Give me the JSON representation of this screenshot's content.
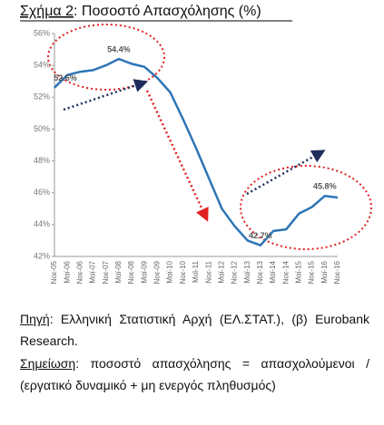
{
  "header": {
    "figure_label": "Σχήμα 2",
    "title": ": Ποσοστό Απασχόλησης (%)"
  },
  "chart_data": {
    "type": "line",
    "categories": [
      "Νοε-05",
      "Μαϊ-06",
      "Νοε-06",
      "Μαϊ-07",
      "Νοε-07",
      "Μαϊ-08",
      "Νοε-08",
      "Μαϊ-09",
      "Νοε-09",
      "Μαϊ-10",
      "Νοε-10",
      "Μαϊ-11",
      "Νοε-11",
      "Μαϊ-12",
      "Νοε-12",
      "Μαϊ-13",
      "Νοε-13",
      "Μαϊ-14",
      "Νοε-14",
      "Μαϊ-15",
      "Νοε-15",
      "Μαϊ-16",
      "Νοε-16"
    ],
    "series": [
      {
        "color": "#2e75b6",
        "values": [
          52.6,
          53.4,
          53.6,
          53.7,
          54.0,
          54.4,
          54.1,
          53.9,
          53.2,
          52.3,
          50.6,
          48.8,
          46.9,
          45.0,
          43.9,
          43.0,
          42.7,
          43.6,
          43.7,
          44.7,
          45.1,
          45.8,
          45.7
        ],
        "value_labels": [
          "52.6%",
          null,
          null,
          null,
          null,
          "54.4%",
          null,
          null,
          null,
          null,
          null,
          null,
          null,
          null,
          null,
          null,
          "42.7%",
          null,
          null,
          null,
          null,
          "45.8%",
          null
        ]
      }
    ],
    "ylim": [
      42,
      56
    ],
    "yticks": [
      {
        "value": 42,
        "label": "42%"
      },
      {
        "value": 44,
        "label": "44%"
      },
      {
        "value": 46,
        "label": "46%"
      },
      {
        "value": 48,
        "label": "48%"
      },
      {
        "value": 50,
        "label": "50%"
      },
      {
        "value": 52,
        "label": "52%"
      },
      {
        "value": 54,
        "label": "54%"
      },
      {
        "value": 56,
        "label": "56%"
      }
    ],
    "grid": false
  },
  "source": {
    "label": "Πηγή",
    "text": ": Ελληνική Στατιστική Αρχή (ΕΛ.ΣΤΑΤ.), (β) Eurobank Research."
  },
  "note": {
    "label": "Σημείωση",
    "text": ": ποσοστό απασχόλησης = απασχολούμενοι / (εργατικό δυναμικό + μη ενεργός πληθυσμός)"
  }
}
